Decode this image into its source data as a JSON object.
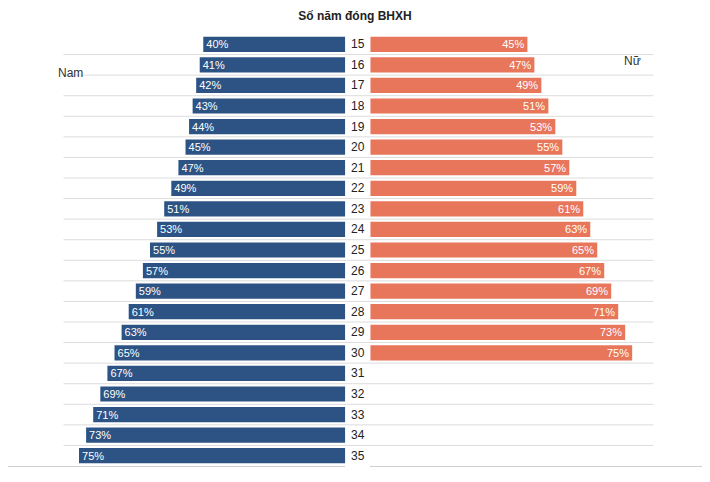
{
  "chart_data": {
    "type": "bar",
    "orientation": "horizontal",
    "title": "Số năm đóng BHXH",
    "categories": [
      "15",
      "16",
      "17",
      "18",
      "19",
      "20",
      "21",
      "22",
      "23",
      "24",
      "25",
      "26",
      "27",
      "28",
      "29",
      "30",
      "31",
      "32",
      "33",
      "34",
      "35"
    ],
    "series": [
      {
        "name": "Nam",
        "color": "#2c5384",
        "values": [
          40,
          41,
          42,
          43,
          44,
          45,
          47,
          49,
          51,
          53,
          55,
          57,
          59,
          61,
          63,
          65,
          67,
          69,
          71,
          73,
          75
        ],
        "value_labels": [
          "40%",
          "41%",
          "42%",
          "43%",
          "44%",
          "45%",
          "47%",
          "49%",
          "51%",
          "53%",
          "55%",
          "57%",
          "59%",
          "61%",
          "63%",
          "65%",
          "67%",
          "69%",
          "71%",
          "73%",
          "75%"
        ]
      },
      {
        "name": "Nữ",
        "color": "#e8765b",
        "values": [
          45,
          47,
          49,
          51,
          53,
          55,
          57,
          59,
          61,
          63,
          65,
          67,
          69,
          71,
          73,
          75,
          null,
          null,
          null,
          null,
          null
        ],
        "value_labels": [
          "45%",
          "47%",
          "49%",
          "51%",
          "53%",
          "55%",
          "57%",
          "59%",
          "61%",
          "63%",
          "65%",
          "67%",
          "69%",
          "71%",
          "73%",
          "75%",
          null,
          null,
          null,
          null,
          null
        ]
      }
    ],
    "xlim": [
      0,
      95
    ],
    "tick_labels": false,
    "data_labels": true,
    "grid": true
  }
}
